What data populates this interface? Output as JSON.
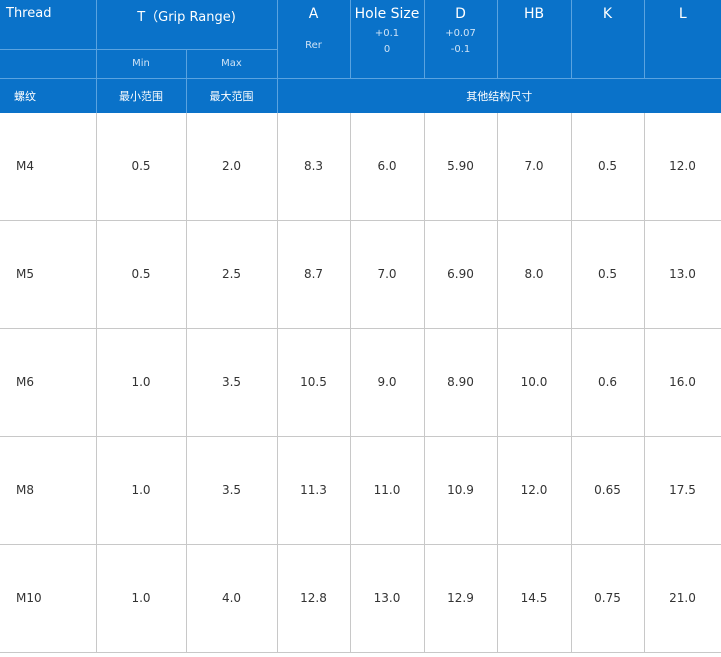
{
  "header": {
    "thread": "Thread",
    "grip_range": "T（Grip Range)",
    "a": "A",
    "hole_size": "Hole Size",
    "d": "D",
    "hb": "HB",
    "k": "K",
    "l": "L",
    "min": "Min",
    "max": "Max",
    "rer": "Rer",
    "hole_tol_upper": "+0.1",
    "hole_tol_lower": "0",
    "d_tol_upper": "+0.07",
    "d_tol_lower": "-0.1"
  },
  "header_cn": {
    "thread": "螺纹",
    "min": "最小范围",
    "max": "最大范围",
    "other": "其他结构尺寸"
  },
  "rows": [
    {
      "thread": "M4",
      "min": "0.5",
      "max": "2.0",
      "a": "8.3",
      "hole": "6.0",
      "d": "5.90",
      "hb": "7.0",
      "k": "0.5",
      "l": "12.0"
    },
    {
      "thread": "M5",
      "min": "0.5",
      "max": "2.5",
      "a": "8.7",
      "hole": "7.0",
      "d": "6.90",
      "hb": "8.0",
      "k": "0.5",
      "l": "13.0"
    },
    {
      "thread": "M6",
      "min": "1.0",
      "max": "3.5",
      "a": "10.5",
      "hole": "9.0",
      "d": "8.90",
      "hb": "10.0",
      "k": "0.6",
      "l": "16.0"
    },
    {
      "thread": "M8",
      "min": "1.0",
      "max": "3.5",
      "a": "11.3",
      "hole": "11.0",
      "d": "10.9",
      "hb": "12.0",
      "k": "0.65",
      "l": "17.5"
    },
    {
      "thread": "M10",
      "min": "1.0",
      "max": "4.0",
      "a": "12.8",
      "hole": "13.0",
      "d": "12.9",
      "hb": "14.5",
      "k": "0.75",
      "l": "21.0"
    }
  ],
  "colors": {
    "header_bg": "#0a72c9",
    "grid_line": "#c8c8c8"
  }
}
